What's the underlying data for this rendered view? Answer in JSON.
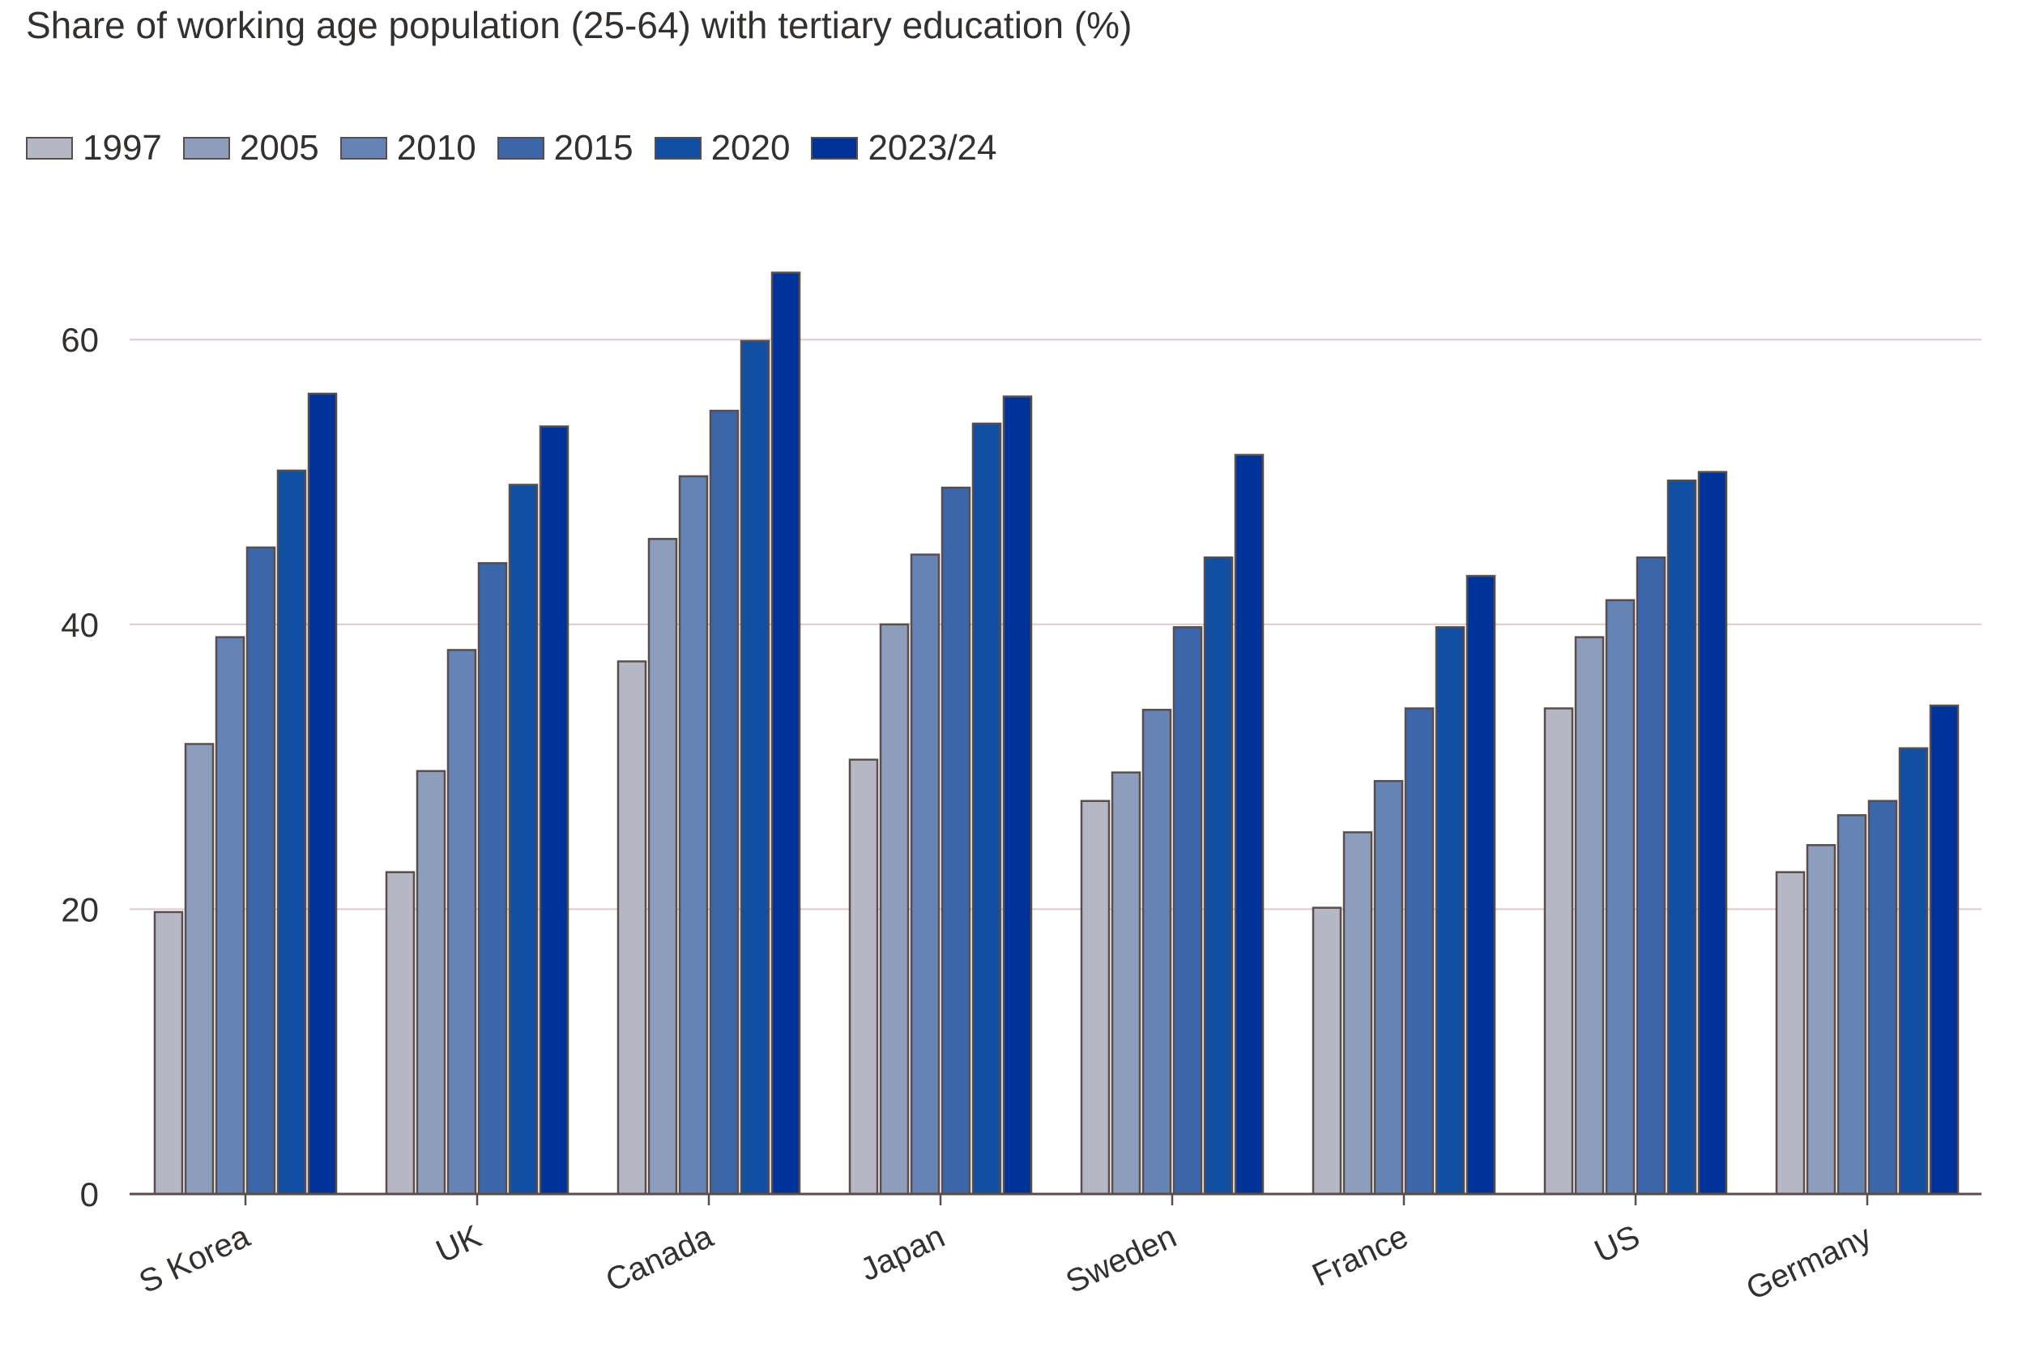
{
  "chart_data": {
    "type": "bar",
    "title": "Share of working age population (25-64) with tertiary education (%)",
    "categories": [
      "S Korea",
      "UK",
      "Canada",
      "Japan",
      "Sweden",
      "France",
      "US",
      "Germany"
    ],
    "series": [
      {
        "name": "1997",
        "color": "#b6b7c4",
        "values": [
          19.8,
          22.6,
          37.4,
          30.5,
          27.6,
          20.1,
          34.1,
          22.6
        ]
      },
      {
        "name": "2005",
        "color": "#8d9dbc",
        "values": [
          31.6,
          29.7,
          46.0,
          40.0,
          29.6,
          25.4,
          39.1,
          24.5
        ]
      },
      {
        "name": "2010",
        "color": "#6583b5",
        "values": [
          39.1,
          38.2,
          50.4,
          44.9,
          34.0,
          29.0,
          41.7,
          26.6
        ]
      },
      {
        "name": "2015",
        "color": "#3b67aa",
        "values": [
          45.4,
          44.3,
          55.0,
          49.6,
          39.8,
          34.1,
          44.7,
          27.6
        ]
      },
      {
        "name": "2020",
        "color": "#114fa3",
        "values": [
          50.8,
          49.8,
          59.9,
          54.1,
          44.7,
          39.8,
          50.1,
          31.3
        ]
      },
      {
        "name": "2023/24",
        "color": "#00339a",
        "values": [
          56.2,
          53.9,
          64.7,
          56.0,
          51.9,
          43.4,
          50.7,
          34.3
        ]
      }
    ],
    "yticks": [
      0,
      20,
      40,
      60
    ],
    "ylim": [
      0,
      65
    ],
    "xlabel": "",
    "ylabel": "",
    "grid": true,
    "legend_position": "top-left"
  },
  "colors": {
    "gridline": "#e0c8cc",
    "axis": "#5b4e4a",
    "bar_outline": "#5b4e4a",
    "text": "#33302e"
  }
}
